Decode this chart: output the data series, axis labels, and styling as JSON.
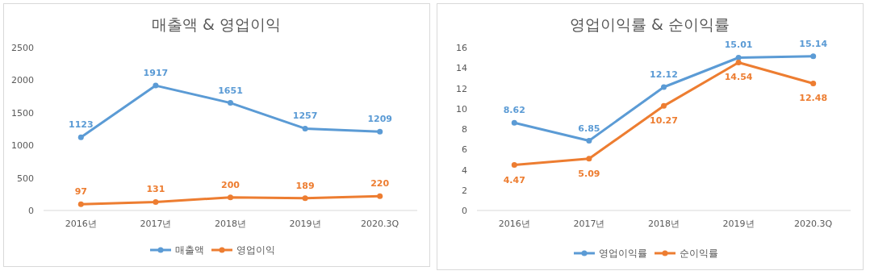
{
  "chart_data": [
    {
      "type": "line",
      "title": "매출액 & 영업이익",
      "categories": [
        "2016년",
        "2017년",
        "2018년",
        "2019년",
        "2020.3Q"
      ],
      "series": [
        {
          "name": "매출액",
          "color": "#5b9bd5",
          "values": [
            1123,
            1917,
            1651,
            1257,
            1209
          ]
        },
        {
          "name": "영업이익",
          "color": "#ed7d31",
          "values": [
            97,
            131,
            200,
            189,
            220
          ]
        }
      ],
      "ylim": [
        0,
        2500
      ],
      "yticks": [
        0,
        500,
        1000,
        1500,
        2000,
        2500
      ],
      "data_labels": true,
      "legend": "bottom",
      "marker": "circle",
      "grid": false
    },
    {
      "type": "line",
      "title": "영업이익률 & 순이익률",
      "categories": [
        "2016년",
        "2017년",
        "2018년",
        "2019년",
        "2020.3Q"
      ],
      "series": [
        {
          "name": "영업이익률",
          "color": "#5b9bd5",
          "values": [
            8.62,
            6.85,
            12.12,
            15.01,
            15.14
          ]
        },
        {
          "name": "순이익률",
          "color": "#ed7d31",
          "values": [
            4.47,
            5.09,
            10.27,
            14.54,
            12.48
          ]
        }
      ],
      "ylim": [
        0,
        16
      ],
      "yticks": [
        0,
        2,
        4,
        6,
        8,
        10,
        12,
        14,
        16
      ],
      "data_labels": true,
      "legend": "bottom",
      "marker": "circle",
      "grid": false
    }
  ]
}
